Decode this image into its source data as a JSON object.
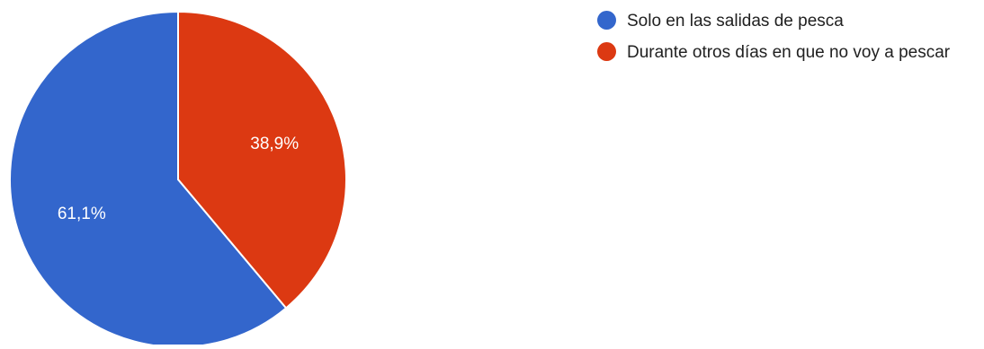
{
  "chart_data": {
    "type": "pie",
    "title": "",
    "slices": [
      {
        "label": "Solo en las salidas de pesca",
        "value": 61.1,
        "display": "61,1%",
        "color": "#3366cc"
      },
      {
        "label": "Durante otros días en que no voy a pescar",
        "value": 38.9,
        "display": "38,9%",
        "color": "#dc3912"
      }
    ],
    "start_angle_deg": 90,
    "direction": "counter-clockwise",
    "legend_position": "right"
  }
}
